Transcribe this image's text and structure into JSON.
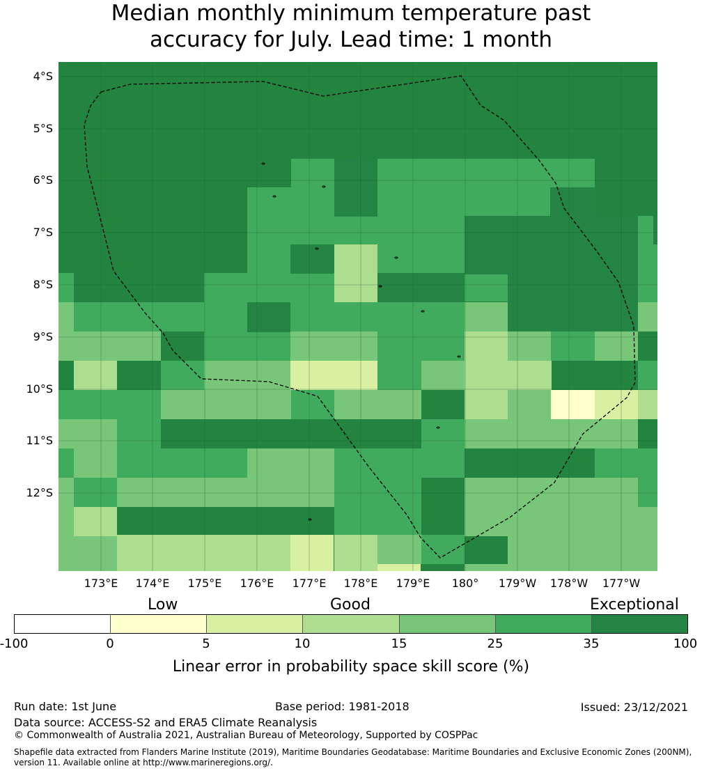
{
  "title_line1": "Median monthly minimum temperature past",
  "title_line2": "accuracy for July. Lead time: 1 month",
  "map": {
    "lat_labels": [
      "4°S",
      "5°S",
      "6°S",
      "7°S",
      "8°S",
      "9°S",
      "10°S",
      "11°S",
      "12°S"
    ],
    "lon_labels": [
      "173°E",
      "174°E",
      "175°E",
      "176°E",
      "177°E",
      "178°E",
      "179°E",
      "180°",
      "179°W",
      "178°W",
      "177°W"
    ],
    "colors": [
      "#ffffff",
      "#ffffcc",
      "#d9f0a3",
      "#addd8e",
      "#78c679",
      "#41ab5d",
      "#238443"
    ],
    "grid": [
      "6666666666666666666666666666",
      "6666666666666666666666666666",
      "6666666666666666666666666666",
      "6666666666666666666666666666",
      "6666666666666666666666666666",
      "6666666666666666666666666666",
      "6666666666666666666666666666",
      "6666666666666666666666666666",
      "6666666666666666666666666666",
      "6666666666666666666666666666",
      "6666666666666666666666666666",
      "6666666666666666666666666666",
      "6666666666666666666666666666",
      "6666666666666666666666666666",
      "6666666666666666666666666666",
      "6666666666666666666666666666",
      "6666666666666666666666666666",
      "6666666666666666666666666666",
      "6666666666666666666666666666",
      "6666666666666666666666666666",
      "6666666666666666666666666666",
      "6666666666666666666666666666",
      "6666666666666666666666666666",
      "6666666666666666666666666666",
      "6666666666666666666666666666",
      "6666666666666666666666666666",
      "6666666666666666666666666666",
      "6666666666666666666666666666",
      "6666666666666666666666666666",
      "6666666666666666666666666666",
      "6666666666666666666666666666",
      "6666666666666666666666666666",
      "6666666666666666666666666666",
      "6666666666666666666666666666",
      "6666666666666666666666666666"
    ],
    "rows_data": [
      "6666666666666666666666666666",
      "6666666666666666666666666666",
      "6666666666666666666666666666",
      "6666666666665555555555666666",
      "6666666666666665555555555666",
      "6666666666666665555555555666",
      "6666666666666665555555555666",
      "6666666666666665555555555666",
      "6666666666666665555555555666",
      "6666666666666665555555555666",
      "6666666666666665555555555666",
      "6666666666666665555555555666"
    ]
  },
  "rowmap": [
    "66666666666666666666666666666666666666666666666666666666",
    "66666666666655555666666666666666666666666666666666666666"
  ],
  "cells": [
    "666666666666666666666666",
    "666666666666666666666666",
    "666666666666666666666666",
    "666666666555566666666666",
    "666666666555566666666666"
  ],
  "raster": [
    "66666666666666666666666666666666666666666",
    "66666666666666666666666666666666666666666"
  ],
  "tiles": [
    "66666666666666666666666666666666666666666"
  ],
  "colorbar": {
    "words": {
      "low": "Low",
      "good": "Good",
      "exceptional": "Exceptional"
    },
    "ticks": [
      "-100",
      "0",
      "5",
      "10",
      "15",
      "25",
      "35",
      "100"
    ],
    "label": "Linear error in probability space skill score (%)"
  },
  "footer": {
    "run_date": "Run date: 1st June",
    "base_period": "Base period: 1981-2018",
    "issued": "Issued: 23/12/2021",
    "data_source": "Data source: ACCESS-S2 and ERA5 Climate Reanalysis",
    "copyright": "© Commonwealth of Australia 2021, Australian Bureau of Meteorology, Supported by COSPPac",
    "shapefile1": "Shapefile data extracted from Flanders Marine Institute (2019), Maritime Boundaries Geodatabase: Maritime Boundaries and Exclusive Economic Zones (200NM),",
    "shapefile2": "version 11. Available online at http://www.marineregions.org/."
  }
}
